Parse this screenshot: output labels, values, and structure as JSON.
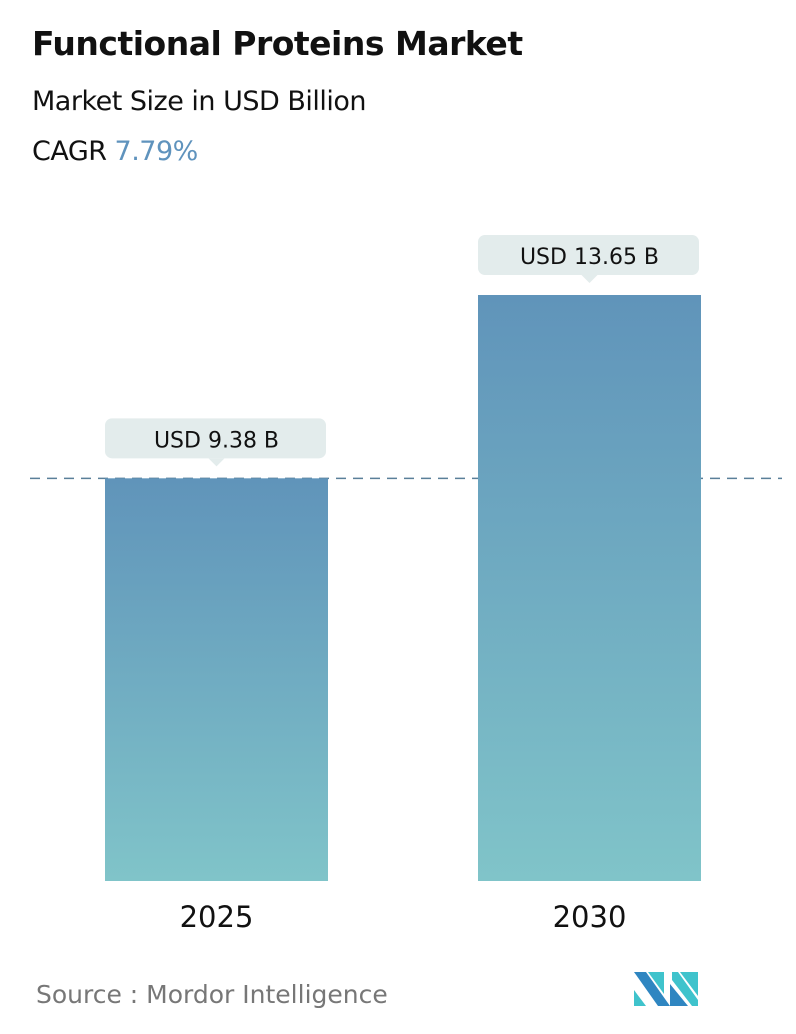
{
  "header": {
    "title": "Functional Proteins Market",
    "subtitle": "Market Size in USD Billion",
    "cagr_label": "CAGR",
    "cagr_value": "7.79%"
  },
  "chart_data": {
    "type": "bar",
    "categories": [
      "2025",
      "2030"
    ],
    "values": [
      9.38,
      13.65
    ],
    "data_labels": [
      "USD 9.38 B",
      "USD 13.65 B"
    ],
    "unit": "USD Billion",
    "reference_line": {
      "value": 9.38,
      "style": "dashed"
    },
    "grid": false,
    "ylim": [
      0,
      13.65
    ],
    "colors": {
      "bar_top": "#6094ba",
      "bar_bottom": "#80c4c9",
      "label_bg": "#e3ecec",
      "ref_line": "#5a7f99"
    }
  },
  "footer": {
    "source": "Source :  Mordor Intelligence",
    "logo": "Mordor Intelligence logo"
  }
}
